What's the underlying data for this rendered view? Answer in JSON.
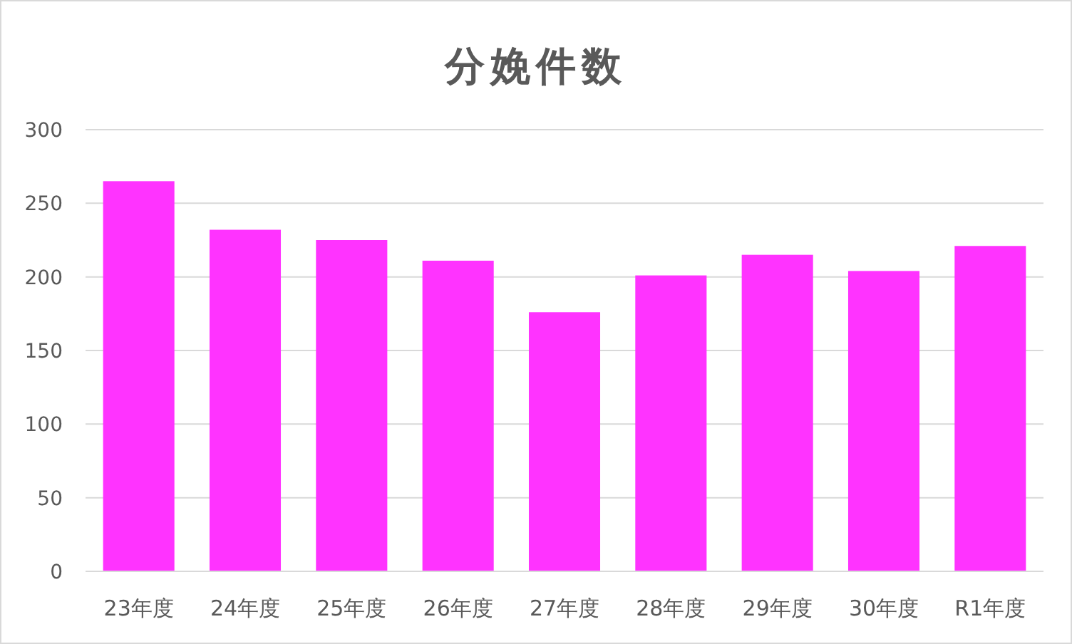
{
  "chart_data": {
    "type": "bar",
    "title": "分娩件数",
    "categories": [
      "23年度",
      "24年度",
      "25年度",
      "26年度",
      "27年度",
      "28年度",
      "29年度",
      "30年度",
      "R1年度"
    ],
    "values": [
      265,
      232,
      225,
      211,
      176,
      201,
      215,
      204,
      221
    ],
    "color": "#ff33ff",
    "ylim": [
      0,
      300
    ],
    "yticks": [
      0,
      50,
      100,
      150,
      200,
      250,
      300
    ],
    "grid": "y"
  }
}
